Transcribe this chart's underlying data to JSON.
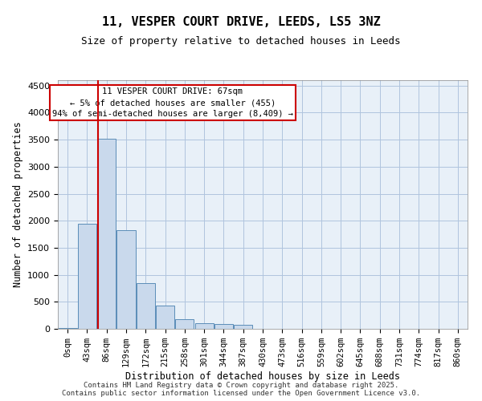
{
  "title_line1": "11, VESPER COURT DRIVE, LEEDS, LS5 3NZ",
  "title_line2": "Size of property relative to detached houses in Leeds",
  "xlabel": "Distribution of detached houses by size in Leeds",
  "ylabel": "Number of detached properties",
  "bar_labels": [
    "0sqm",
    "43sqm",
    "86sqm",
    "129sqm",
    "172sqm",
    "215sqm",
    "258sqm",
    "301sqm",
    "344sqm",
    "387sqm",
    "430sqm",
    "473sqm",
    "516sqm",
    "559sqm",
    "602sqm",
    "645sqm",
    "688sqm",
    "731sqm",
    "774sqm",
    "817sqm",
    "860sqm"
  ],
  "bar_values": [
    10,
    1940,
    3520,
    1820,
    840,
    430,
    175,
    110,
    85,
    70,
    0,
    0,
    0,
    0,
    0,
    0,
    0,
    0,
    0,
    0,
    0
  ],
  "bar_color": "#c9d9ec",
  "bar_edge_color": "#5b8db8",
  "vline_x": 1.55,
  "vline_color": "#cc0000",
  "ylim": [
    0,
    4600
  ],
  "yticks": [
    0,
    500,
    1000,
    1500,
    2000,
    2500,
    3000,
    3500,
    4000,
    4500
  ],
  "annotation_text": "11 VESPER COURT DRIVE: 67sqm\n← 5% of detached houses are smaller (455)\n94% of semi-detached houses are larger (8,409) →",
  "annotation_box_color": "#ffffff",
  "annotation_box_edge": "#cc0000",
  "footer_text": "Contains HM Land Registry data © Crown copyright and database right 2025.\nContains public sector information licensed under the Open Government Licence v3.0.",
  "grid_color": "#b0c4de",
  "bg_color": "#e8f0f8"
}
